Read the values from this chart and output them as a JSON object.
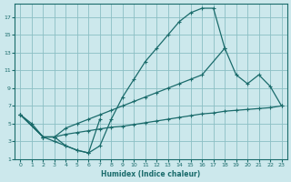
{
  "xlabel": "Humidex (Indice chaleur)",
  "bg_color": "#cce8ec",
  "grid_color": "#8bbfc4",
  "line_color": "#1a6b6b",
  "xlim": [
    -0.5,
    23.5
  ],
  "ylim": [
    1,
    18.5
  ],
  "xticks": [
    0,
    1,
    2,
    3,
    4,
    5,
    6,
    7,
    8,
    9,
    10,
    11,
    12,
    13,
    14,
    15,
    16,
    17,
    18,
    19,
    20,
    21,
    22,
    23
  ],
  "yticks": [
    1,
    3,
    5,
    7,
    9,
    11,
    13,
    15,
    17
  ],
  "line1_x": [
    0,
    1,
    2,
    3,
    4,
    5,
    6,
    7,
    8,
    9,
    10,
    11,
    12,
    13,
    14,
    15,
    16,
    17,
    18
  ],
  "line1_y": [
    6,
    5,
    3.5,
    3.5,
    2.5,
    2,
    1.7,
    2.5,
    5.5,
    8,
    10,
    12,
    13.5,
    15,
    16.5,
    17.5,
    18,
    18,
    13.5
  ],
  "line2_x": [
    0,
    2,
    3,
    4,
    5,
    6,
    7,
    8,
    9,
    10,
    11,
    12,
    13,
    14,
    15,
    16,
    18,
    19,
    20,
    21,
    22,
    23
  ],
  "line2_y": [
    6,
    3.5,
    3.5,
    4.5,
    5.0,
    5.5,
    6.0,
    6.5,
    7.0,
    7.5,
    8.0,
    8.5,
    9.0,
    9.5,
    10.0,
    10.5,
    13.5,
    10.5,
    9.5,
    10.5,
    9.2,
    7.0
  ],
  "line3_x": [
    0,
    2,
    3,
    4,
    5,
    6,
    7,
    8,
    9,
    10,
    11,
    12,
    13,
    14,
    15,
    16,
    17,
    18,
    19,
    20,
    21,
    22,
    23
  ],
  "line3_y": [
    6,
    3.5,
    3.5,
    3.8,
    4.0,
    4.2,
    4.4,
    4.6,
    4.7,
    4.9,
    5.1,
    5.3,
    5.5,
    5.7,
    5.9,
    6.1,
    6.2,
    6.4,
    6.5,
    6.6,
    6.7,
    6.8,
    7.0
  ],
  "line4_x": [
    0,
    2,
    3,
    4,
    5,
    6,
    7
  ],
  "line4_y": [
    6,
    3.5,
    3,
    2.5,
    2,
    1.7,
    5.5
  ]
}
